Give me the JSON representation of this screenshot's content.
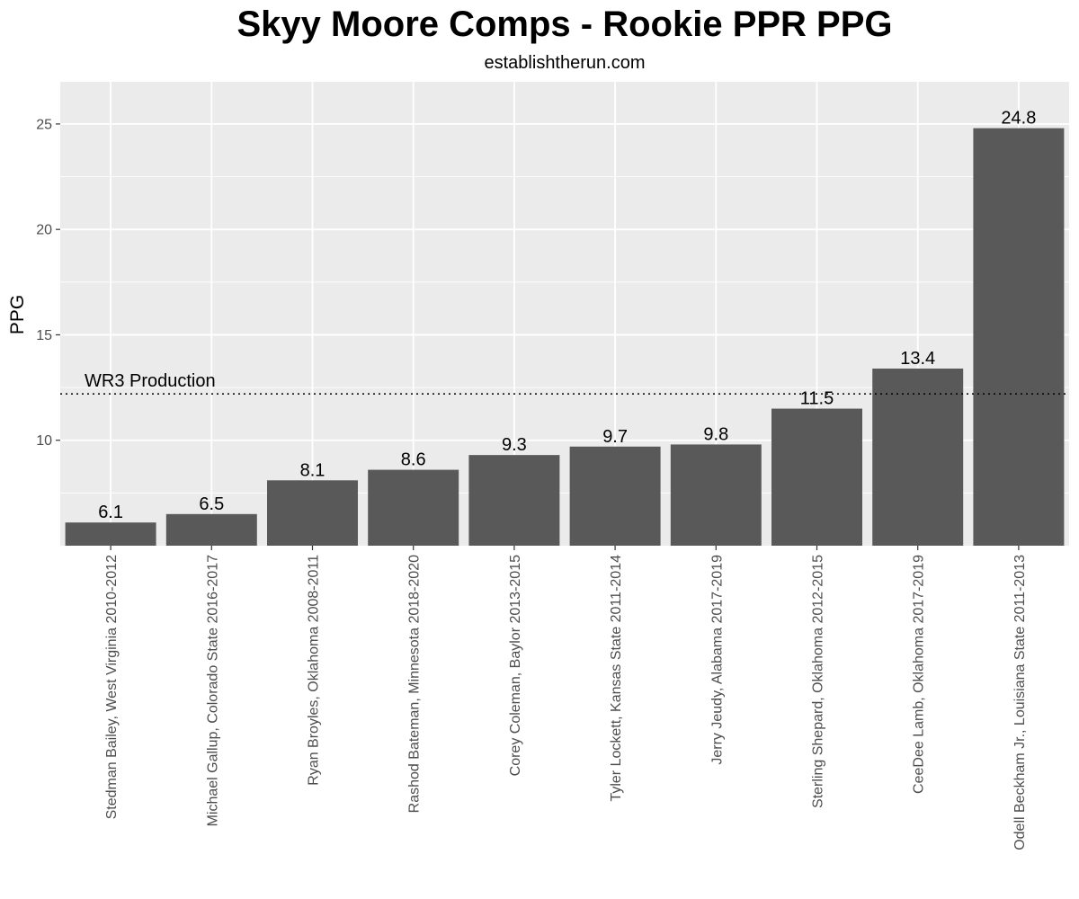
{
  "chart_data": {
    "type": "bar",
    "title": "Skyy Moore Comps - Rookie PPR PPG",
    "subtitle": "establishtherun.com",
    "xlabel": "",
    "ylabel": "PPG",
    "ylim": [
      5,
      27
    ],
    "yticks": [
      10,
      15,
      20,
      25
    ],
    "ytick_labels": [
      "10",
      "15",
      "20",
      "25"
    ],
    "grid": true,
    "categories": [
      "Stedman Bailey, West Virginia 2010-2012",
      "Michael Gallup, Colorado State 2016-2017",
      "Ryan Broyles, Oklahoma 2008-2011",
      "Rashod Bateman, Minnesota 2018-2020",
      "Corey Coleman, Baylor 2013-2015",
      "Tyler Lockett, Kansas State 2011-2014",
      "Jerry Jeudy, Alabama 2017-2019",
      "Sterling Shepard, Oklahoma 2012-2015",
      "CeeDee Lamb, Oklahoma 2017-2019",
      "Odell Beckham Jr., Louisiana State 2011-2013"
    ],
    "values": [
      6.1,
      6.5,
      8.1,
      8.6,
      9.3,
      9.7,
      9.8,
      11.5,
      13.4,
      24.8
    ],
    "data_labels": [
      "6.1",
      "6.5",
      "8.1",
      "8.6",
      "9.3",
      "9.7",
      "9.8",
      "11.5",
      "13.4",
      "24.8"
    ],
    "reference_line": {
      "label": "WR3 Production",
      "value": 12.2,
      "style": "dotted"
    },
    "colors": {
      "bar": "#595959",
      "panel": "#ebebeb",
      "grid": "#ffffff"
    }
  }
}
